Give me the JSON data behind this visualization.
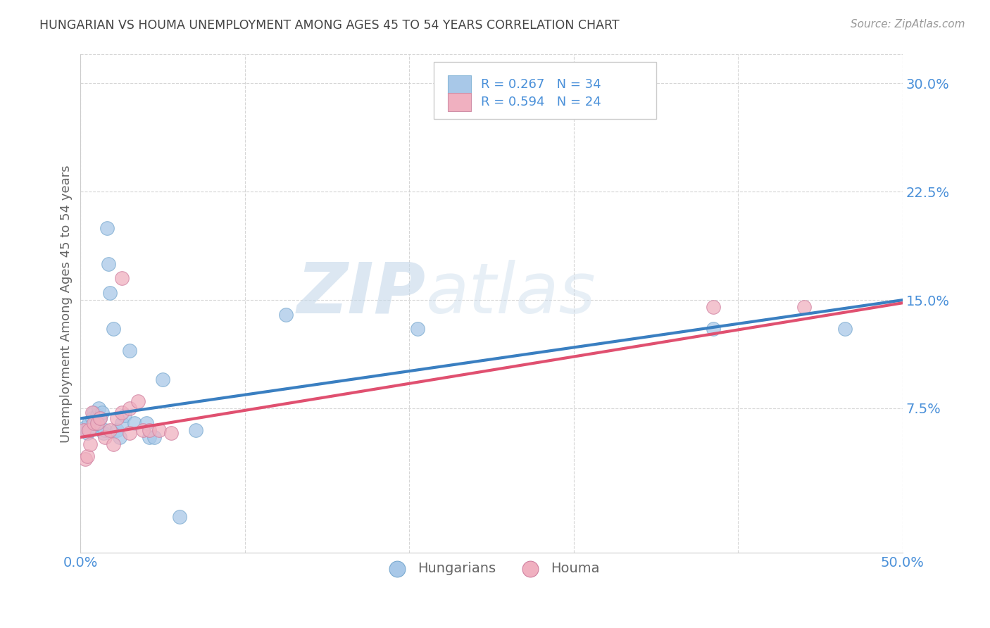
{
  "title": "HUNGARIAN VS HOUMA UNEMPLOYMENT AMONG AGES 45 TO 54 YEARS CORRELATION CHART",
  "source": "Source: ZipAtlas.com",
  "ylabel": "Unemployment Among Ages 45 to 54 years",
  "xlim": [
    0,
    0.5
  ],
  "ylim": [
    -0.025,
    0.32
  ],
  "yticks": [
    0.075,
    0.15,
    0.225,
    0.3
  ],
  "ytick_labels": [
    "7.5%",
    "15.0%",
    "22.5%",
    "30.0%"
  ],
  "xticks": [
    0.0,
    0.1,
    0.2,
    0.3,
    0.4,
    0.5
  ],
  "xtick_labels": [
    "0.0%",
    "",
    "",
    "",
    "",
    "50.0%"
  ],
  "background_color": "#ffffff",
  "watermark_zip": "ZIP",
  "watermark_atlas": "atlas",
  "blue_scatter_color": "#a8c8e8",
  "pink_scatter_color": "#f0b0c0",
  "blue_line_color": "#3a7fc1",
  "pink_line_color": "#e05070",
  "tick_color": "#4a90d9",
  "legend_text_color": "#4a90d9",
  "hungarian_points_x": [
    0.002,
    0.003,
    0.004,
    0.005,
    0.006,
    0.007,
    0.008,
    0.009,
    0.01,
    0.011,
    0.012,
    0.013,
    0.014,
    0.015,
    0.016,
    0.017,
    0.018,
    0.02,
    0.022,
    0.024,
    0.025,
    0.027,
    0.03,
    0.033,
    0.04,
    0.042,
    0.045,
    0.05,
    0.06,
    0.07,
    0.125,
    0.205,
    0.385,
    0.465
  ],
  "hungarian_points_y": [
    0.06,
    0.062,
    0.058,
    0.065,
    0.06,
    0.068,
    0.072,
    0.065,
    0.07,
    0.075,
    0.068,
    0.072,
    0.058,
    0.06,
    0.2,
    0.175,
    0.155,
    0.13,
    0.06,
    0.055,
    0.065,
    0.07,
    0.115,
    0.065,
    0.065,
    0.055,
    0.055,
    0.095,
    0.0,
    0.06,
    0.14,
    0.13,
    0.13,
    0.13
  ],
  "houma_points_x": [
    0.002,
    0.003,
    0.004,
    0.005,
    0.006,
    0.007,
    0.008,
    0.01,
    0.012,
    0.015,
    0.018,
    0.02,
    0.022,
    0.025,
    0.03,
    0.035,
    0.038,
    0.042,
    0.048,
    0.055,
    0.385,
    0.44,
    0.025,
    0.03
  ],
  "houma_points_y": [
    0.06,
    0.04,
    0.042,
    0.06,
    0.05,
    0.072,
    0.065,
    0.065,
    0.068,
    0.055,
    0.06,
    0.05,
    0.068,
    0.072,
    0.075,
    0.08,
    0.06,
    0.06,
    0.06,
    0.058,
    0.145,
    0.145,
    0.165,
    0.058
  ],
  "blue_line_x0": 0.0,
  "blue_line_y0": 0.068,
  "blue_line_x1": 0.5,
  "blue_line_y1": 0.15,
  "pink_line_x0": 0.0,
  "pink_line_y0": 0.055,
  "pink_line_x1": 0.5,
  "pink_line_y1": 0.148
}
